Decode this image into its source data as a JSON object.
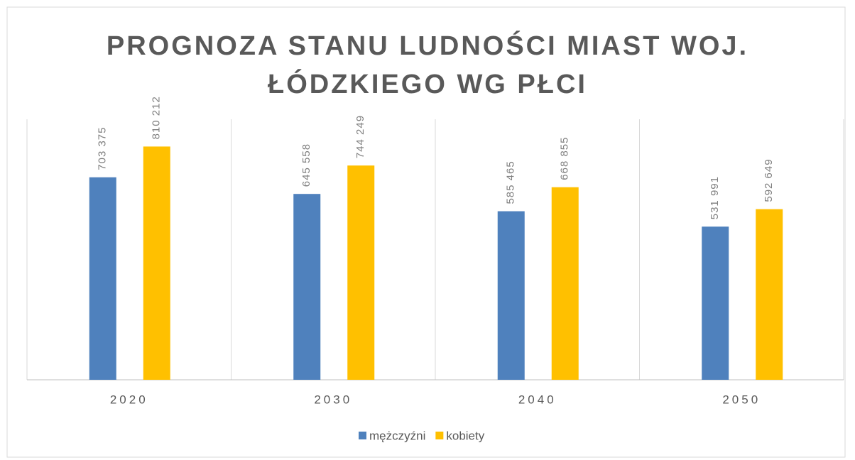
{
  "chart_data": {
    "type": "bar",
    "title": "PROGNOZA STANU LUDNOŚCI MIAST WOJ. ŁÓDZKIEGO WG PŁCI",
    "categories": [
      "2020",
      "2030",
      "2040",
      "2050"
    ],
    "series": [
      {
        "name": "mężczyźni",
        "color": "#4f81bd",
        "values": [
          703375,
          645558,
          585465,
          531991
        ],
        "value_labels": [
          "703 375",
          "645 558",
          "585 465",
          "531 991"
        ]
      },
      {
        "name": "kobiety",
        "color": "#ffc000",
        "values": [
          810212,
          744249,
          668855,
          592649
        ],
        "value_labels": [
          "810 212",
          "744 249",
          "668 855",
          "592 649"
        ]
      }
    ],
    "ylim": [
      0,
      900000
    ],
    "legend": "bottom"
  }
}
